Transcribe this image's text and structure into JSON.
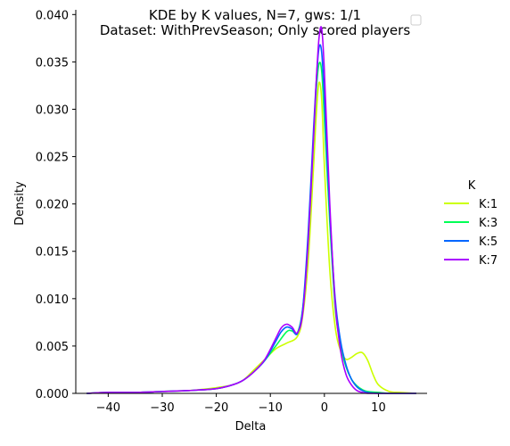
{
  "chart_data": {
    "type": "line",
    "title_line1": "KDE by K values, N=7, gws: 1/1",
    "title_line2": "Dataset: WithPrevSeason; Only scored players",
    "xlabel": "Delta",
    "ylabel": "Density",
    "xlim": [
      -46,
      19
    ],
    "ylim": [
      0,
      0.0405
    ],
    "x_ticks": [
      -40,
      -30,
      -20,
      -10,
      0,
      10
    ],
    "x_tick_labels": [
      "−40",
      "−30",
      "−20",
      "−10",
      "0",
      "10"
    ],
    "y_ticks": [
      0.0,
      0.005,
      0.01,
      0.015,
      0.02,
      0.025,
      0.03,
      0.035,
      0.04
    ],
    "y_tick_labels": [
      "0.000",
      "0.005",
      "0.010",
      "0.015",
      "0.020",
      "0.025",
      "0.030",
      "0.035",
      "0.040"
    ],
    "grid": false,
    "legend": {
      "title": "K",
      "placement": "right"
    },
    "series": [
      {
        "name": "K:1",
        "color": "#ccff00",
        "x": [
          -44,
          -40,
          -35,
          -30,
          -25,
          -20,
          -17,
          -15,
          -13,
          -11,
          -9,
          -7,
          -5,
          -4,
          -3,
          -2,
          -1.5,
          -1,
          -0.5,
          0,
          1,
          2,
          3,
          4,
          5,
          6,
          7,
          8,
          9,
          10,
          12,
          14,
          17
        ],
        "y": [
          0,
          0.0001,
          0.0001,
          0.0002,
          0.0003,
          0.0006,
          0.0009,
          0.0014,
          0.0025,
          0.0036,
          0.0047,
          0.0053,
          0.006,
          0.0082,
          0.014,
          0.024,
          0.0295,
          0.0328,
          0.031,
          0.024,
          0.013,
          0.007,
          0.0045,
          0.0036,
          0.0038,
          0.0042,
          0.0043,
          0.0035,
          0.002,
          0.0009,
          0.0002,
          0.0001,
          0
        ]
      },
      {
        "name": "K:3",
        "color": "#00ff55",
        "x": [
          -44,
          -40,
          -35,
          -30,
          -25,
          -20,
          -17,
          -15,
          -13,
          -11,
          -9,
          -7,
          -6,
          -5,
          -4,
          -3,
          -2,
          -1.5,
          -1,
          -0.5,
          0,
          1,
          2,
          3,
          4,
          5,
          6,
          7,
          8,
          10,
          12,
          17
        ],
        "y": [
          0,
          0.0001,
          0.0001,
          0.0002,
          0.0003,
          0.0005,
          0.0009,
          0.0014,
          0.0023,
          0.0035,
          0.005,
          0.0065,
          0.0066,
          0.0064,
          0.009,
          0.016,
          0.027,
          0.032,
          0.0348,
          0.034,
          0.029,
          0.018,
          0.009,
          0.005,
          0.0028,
          0.0015,
          0.0008,
          0.0004,
          0.0002,
          0.0001,
          0,
          0
        ]
      },
      {
        "name": "K:5",
        "color": "#0066ff",
        "x": [
          -44,
          -40,
          -35,
          -30,
          -25,
          -20,
          -17,
          -15,
          -13,
          -11,
          -9,
          -8,
          -7,
          -6,
          -5,
          -4,
          -3,
          -2,
          -1.5,
          -1,
          -0.5,
          0,
          1,
          2,
          3,
          4,
          5,
          6,
          7,
          8,
          10,
          12,
          17
        ],
        "y": [
          0,
          0.0001,
          0.0001,
          0.0002,
          0.0003,
          0.0005,
          0.0009,
          0.0014,
          0.0023,
          0.0035,
          0.0055,
          0.0065,
          0.007,
          0.0068,
          0.0063,
          0.009,
          0.017,
          0.028,
          0.033,
          0.0365,
          0.036,
          0.031,
          0.019,
          0.01,
          0.0055,
          0.003,
          0.0015,
          0.0007,
          0.0003,
          0.0001,
          0,
          0,
          0
        ]
      },
      {
        "name": "K:7",
        "color": "#aa00ff",
        "x": [
          -44,
          -40,
          -35,
          -30,
          -25,
          -20,
          -17,
          -15,
          -13,
          -11,
          -9,
          -8,
          -7,
          -6,
          -5,
          -4,
          -3,
          -2,
          -1.5,
          -1,
          -0.5,
          0,
          1,
          2,
          3,
          4,
          5,
          6,
          7,
          8,
          10,
          12,
          17
        ],
        "y": [
          0,
          0.0001,
          0.0001,
          0.0002,
          0.0003,
          0.0005,
          0.0009,
          0.0014,
          0.0023,
          0.0036,
          0.0058,
          0.0069,
          0.0073,
          0.007,
          0.0064,
          0.0085,
          0.016,
          0.027,
          0.033,
          0.0375,
          0.0385,
          0.034,
          0.02,
          0.0095,
          0.0045,
          0.002,
          0.0009,
          0.0003,
          0.0001,
          0,
          0,
          0,
          0
        ]
      }
    ]
  }
}
